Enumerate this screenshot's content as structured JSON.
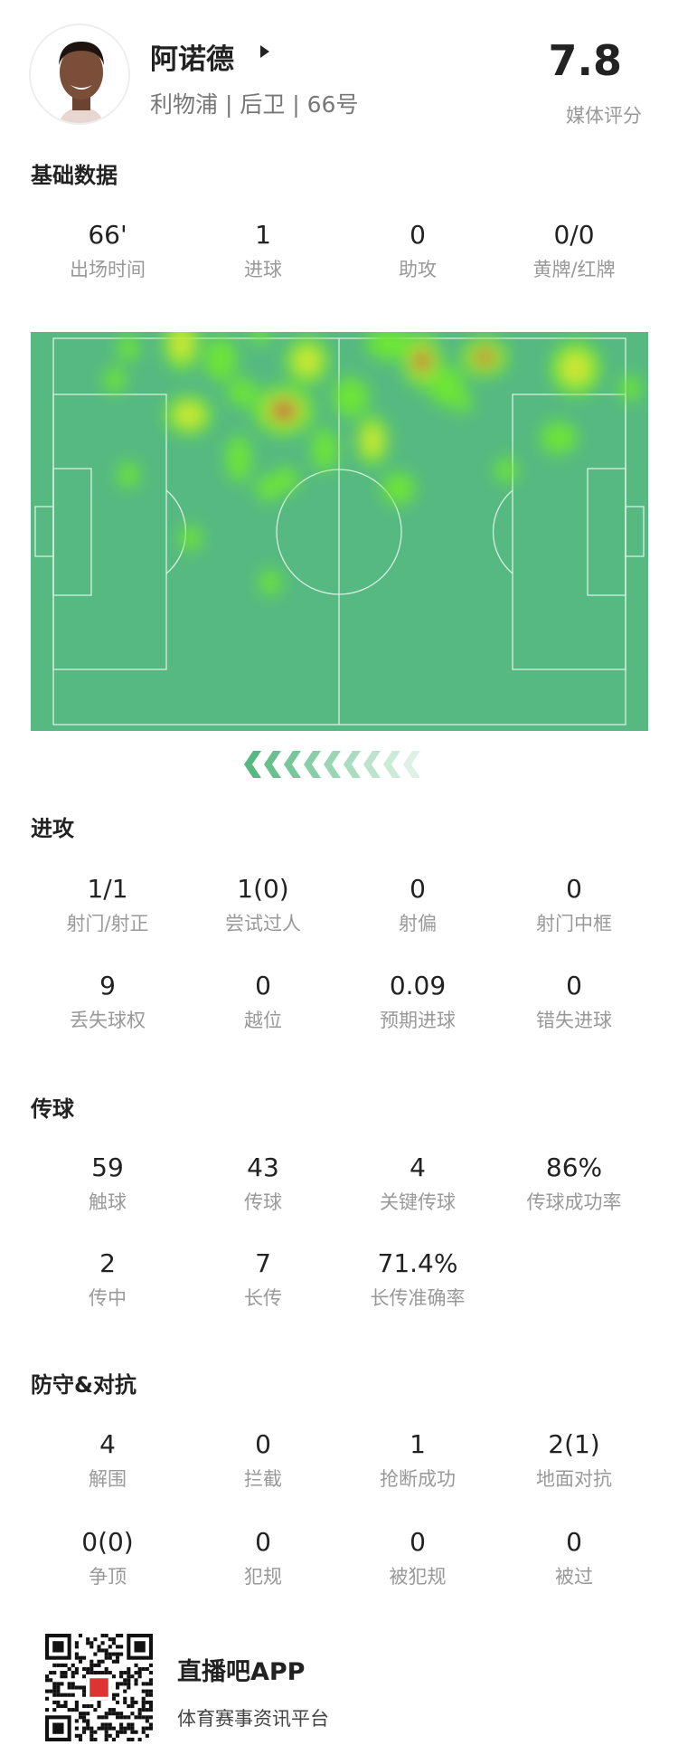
{
  "player": {
    "name": "阿诺德",
    "subtitle": "利物浦 | 后卫 | 66号",
    "rating": "7.8",
    "rating_label": "媒体评分"
  },
  "basic": {
    "title": "基础数据",
    "stats": [
      {
        "value": "66'",
        "label": "出场时间"
      },
      {
        "value": "1",
        "label": "进球"
      },
      {
        "value": "0",
        "label": "助攻"
      },
      {
        "value": "0/0",
        "label": "黄牌/红牌"
      }
    ]
  },
  "heatmap": {
    "attack_direction": "left",
    "colors": {
      "pitch": "#56b982",
      "line": "#d8f0e0",
      "low": "#6ee832",
      "mid": "#d6e830",
      "high": "#c8523a"
    }
  },
  "attack": {
    "title": "进攻",
    "stats": [
      {
        "value": "1/1",
        "label": "射门/射正"
      },
      {
        "value": "1(0)",
        "label": "尝试过人"
      },
      {
        "value": "0",
        "label": "射偏"
      },
      {
        "value": "0",
        "label": "射门中框"
      },
      {
        "value": "9",
        "label": "丢失球权"
      },
      {
        "value": "0",
        "label": "越位"
      },
      {
        "value": "0.09",
        "label": "预期进球"
      },
      {
        "value": "0",
        "label": "错失进球"
      }
    ]
  },
  "passing": {
    "title": "传球",
    "stats": [
      {
        "value": "59",
        "label": "触球"
      },
      {
        "value": "43",
        "label": "传球"
      },
      {
        "value": "4",
        "label": "关键传球"
      },
      {
        "value": "86%",
        "label": "传球成功率"
      },
      {
        "value": "2",
        "label": "传中"
      },
      {
        "value": "7",
        "label": "长传"
      },
      {
        "value": "71.4%",
        "label": "长传准确率"
      }
    ]
  },
  "defense": {
    "title": "防守&对抗",
    "stats": [
      {
        "value": "4",
        "label": "解围"
      },
      {
        "value": "0",
        "label": "拦截"
      },
      {
        "value": "1",
        "label": "抢断成功"
      },
      {
        "value": "2(1)",
        "label": "地面对抗"
      },
      {
        "value": "0(0)",
        "label": "争顶"
      },
      {
        "value": "0",
        "label": "犯规"
      },
      {
        "value": "0",
        "label": "被犯规"
      },
      {
        "value": "0",
        "label": "被过"
      }
    ]
  },
  "footer": {
    "app_name": "直播吧APP",
    "app_subtitle": "体育赛事资讯平台"
  }
}
